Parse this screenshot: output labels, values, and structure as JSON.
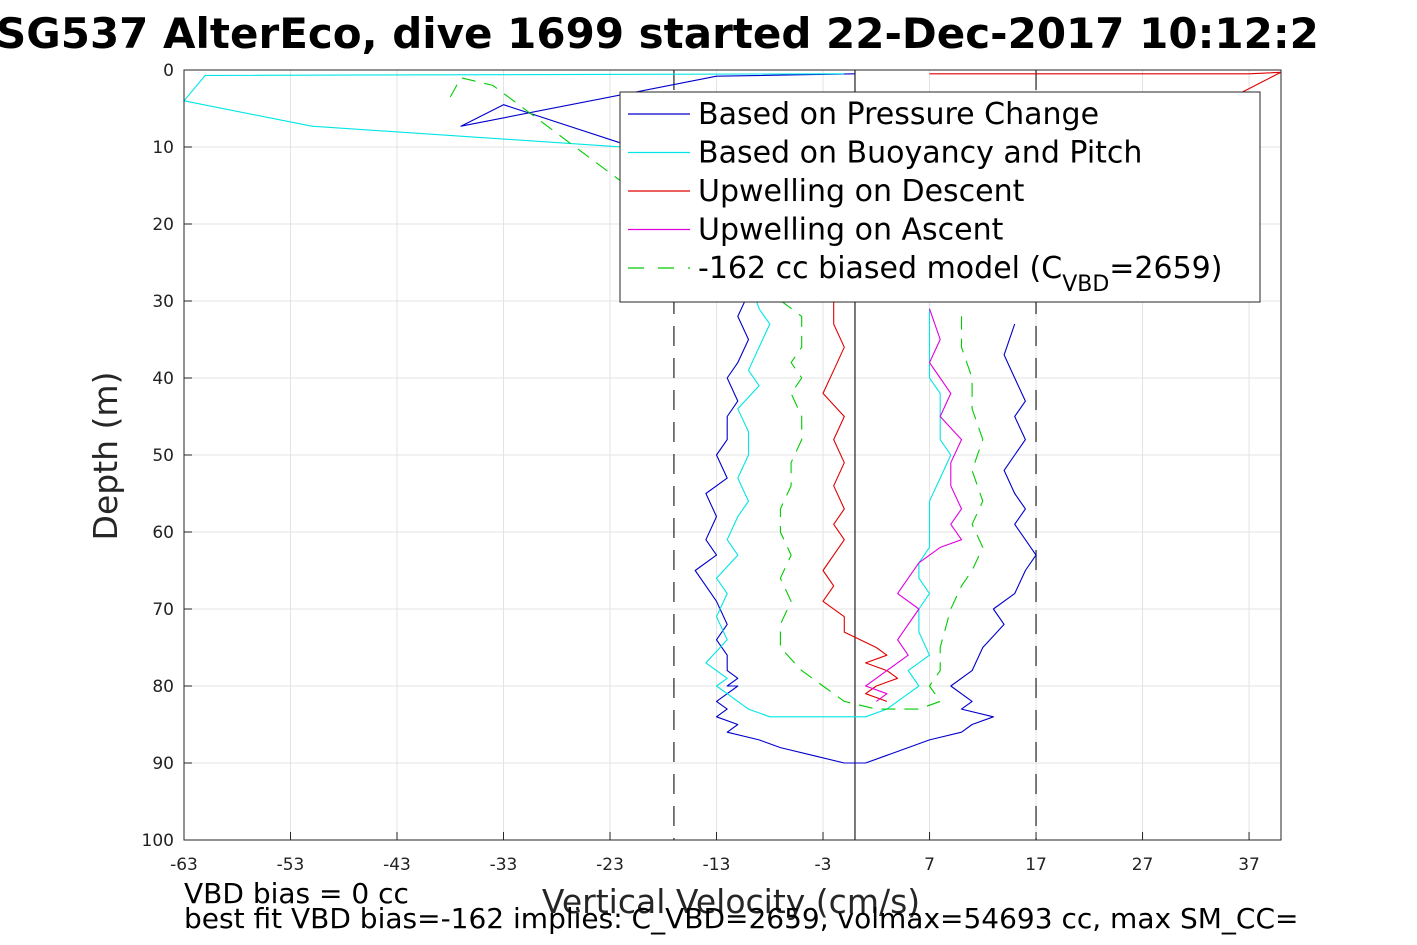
{
  "chart_data": {
    "type": "line",
    "title": "SG537 AlterEco, dive 1699 started 22-Dec-2017 10:12:2",
    "xlabel": "Vertical Velocity (cm/s)",
    "ylabel": "Depth (m)",
    "xlim": [
      -63,
      40
    ],
    "ylim": [
      0,
      100
    ],
    "y_reversed": true,
    "grid": true,
    "xticks": [
      "-63",
      "-53",
      "-43",
      "-33",
      "-23",
      "-13",
      "-3",
      "7",
      "17",
      "27",
      "37"
    ],
    "yticks": [
      "0",
      "10",
      "20",
      "30",
      "40",
      "50",
      "60",
      "70",
      "80",
      "90",
      "100"
    ],
    "legend": {
      "placement": "top-right",
      "entries": [
        {
          "label": "Based on Pressure Change",
          "color": "#0000cc",
          "style": "solid"
        },
        {
          "label": "Based on Buoyancy and Pitch",
          "color": "#00e5e5",
          "style": "solid"
        },
        {
          "label": "Upwelling on Descent",
          "color": "#e00000",
          "style": "solid"
        },
        {
          "label": "Upwelling on Ascent",
          "color": "#e000e0",
          "style": "solid"
        },
        {
          "label": "-162 cc biased model (C",
          "sub": "VBD",
          "suffix": "=2659)",
          "color": "#00cc00",
          "style": "dashed"
        }
      ]
    },
    "reference_lines": [
      {
        "x": -17,
        "style": "dashed",
        "color": "#333333"
      },
      {
        "x": 0,
        "style": "solid",
        "color": "#333333"
      },
      {
        "x": 17,
        "style": "dashed",
        "color": "#333333"
      }
    ],
    "series": [
      {
        "name": "Based on Pressure Change",
        "color": "#0000cc",
        "style": "solid",
        "x": [
          0,
          -13,
          -37,
          -33,
          -12,
          -11,
          -11,
          -10,
          -11,
          -10,
          -11,
          -12,
          -11,
          -12,
          -12,
          -13,
          -12,
          -14,
          -13,
          -14,
          -13,
          -15,
          -14,
          -13,
          -12,
          -13,
          -12,
          -12,
          -11,
          -12,
          -11,
          -12,
          -13,
          -12,
          -13,
          -11,
          -12,
          -9,
          -7,
          -4,
          -1,
          1,
          3,
          5,
          7,
          10,
          11,
          13,
          10,
          11,
          9,
          11,
          12,
          14,
          13,
          15,
          16,
          17,
          16,
          15,
          16,
          15,
          14,
          15,
          16,
          15,
          16,
          15,
          14,
          15
        ],
        "y": [
          0.5,
          0.8,
          7.3,
          4.5,
          14,
          20,
          25,
          29,
          32,
          35,
          38,
          40,
          43,
          45,
          48,
          50,
          53,
          55,
          58,
          61,
          63,
          65,
          67,
          69,
          72,
          74,
          76,
          78,
          79,
          80,
          80,
          81,
          82,
          83,
          84,
          85,
          86,
          87,
          88,
          89,
          90,
          90,
          89,
          88,
          87,
          86,
          85,
          84,
          83,
          82,
          80,
          78,
          75,
          72,
          70,
          68,
          65,
          63,
          61,
          59,
          57,
          55,
          52,
          50,
          48,
          45,
          43,
          40,
          37,
          33
        ]
      },
      {
        "name": "Based on Buoyancy and Pitch",
        "color": "#00e5e5",
        "style": "solid",
        "x": [
          -1,
          -61,
          -63,
          -51,
          -11,
          -10,
          -10,
          -9,
          -8,
          -9,
          -10,
          -9,
          -11,
          -10,
          -10,
          -11,
          -10,
          -11,
          -12,
          -11,
          -13,
          -12,
          -13,
          -12,
          -14,
          -12,
          -13,
          -12,
          -11,
          -10,
          -8,
          -5,
          -2,
          1,
          3,
          5,
          6,
          5,
          7,
          6,
          6,
          7,
          6,
          6,
          7,
          7,
          7,
          7,
          8,
          9,
          8,
          8,
          8,
          7,
          7,
          7,
          7
        ],
        "y": [
          0.5,
          0.7,
          4,
          7.3,
          11,
          20,
          27,
          31,
          33,
          36,
          39,
          41,
          44,
          47,
          50,
          53,
          56,
          58,
          61,
          63,
          66,
          68,
          71,
          74,
          77,
          79,
          80,
          81,
          82,
          83,
          84,
          84,
          84,
          84,
          83,
          81,
          80,
          78,
          76,
          73,
          70,
          68,
          66,
          64,
          62,
          60,
          58,
          56,
          53,
          50,
          48,
          45,
          42,
          40,
          37,
          34,
          31
        ]
      },
      {
        "name": "Upwelling on Descent",
        "color": "#e00000",
        "style": "solid",
        "x": [
          7,
          37,
          40,
          -2,
          -2,
          -1,
          -2,
          -3,
          -1,
          -2,
          -1,
          -2,
          -1,
          -2,
          -1,
          -2,
          -3,
          -2,
          -3,
          -1,
          -1,
          2,
          3,
          1,
          3,
          4,
          2,
          1,
          3
        ],
        "y": [
          0.5,
          0.5,
          0.3,
          30,
          33,
          36,
          39,
          42,
          45,
          48,
          51,
          54,
          57,
          59,
          61,
          63,
          65,
          67,
          69,
          71,
          73,
          75,
          76,
          77,
          78,
          79,
          80,
          81,
          82
        ]
      },
      {
        "name": "Upwelling on Ascent",
        "color": "#e000e0",
        "style": "solid",
        "x": [
          7,
          8,
          7,
          8,
          9,
          8,
          10,
          9,
          9,
          10,
          9,
          10,
          8,
          6,
          5,
          4,
          6,
          5,
          4,
          5,
          3,
          2,
          1,
          3,
          2
        ],
        "y": [
          31,
          35,
          38,
          40,
          42,
          45,
          48,
          51,
          54,
          57,
          59,
          61,
          62,
          64,
          66,
          68,
          70,
          72,
          74,
          76,
          78,
          79,
          80,
          81,
          82
        ]
      },
      {
        "name": "-162 cc biased model (C_VBD=2659)",
        "color": "#00cc00",
        "style": "dashed",
        "x": [
          -38,
          -37,
          -34,
          -5,
          -5,
          -6,
          -5,
          -6,
          -5,
          -5,
          -6,
          -6,
          -7,
          -7,
          -6,
          -7,
          -6,
          -7,
          -7,
          -5,
          -3,
          -1,
          2,
          6,
          8,
          7,
          8,
          8,
          9,
          10,
          11,
          12,
          11,
          12,
          11,
          12,
          11,
          11,
          10,
          10
        ],
        "y": [
          3.5,
          1,
          2,
          32,
          36,
          38,
          40,
          42,
          45,
          48,
          51,
          54,
          57,
          60,
          63,
          66,
          69,
          72,
          75,
          78,
          80,
          82,
          83,
          83,
          82,
          80,
          78,
          75,
          70,
          67,
          65,
          62,
          59,
          56,
          52,
          48,
          44,
          40,
          36,
          32
        ]
      }
    ],
    "footer_lines": [
      "VBD bias = 0 cc",
      "best fit VBD bias=-162 implies: C_VBD=2659, volmax=54693 cc, max SM_CC="
    ]
  }
}
